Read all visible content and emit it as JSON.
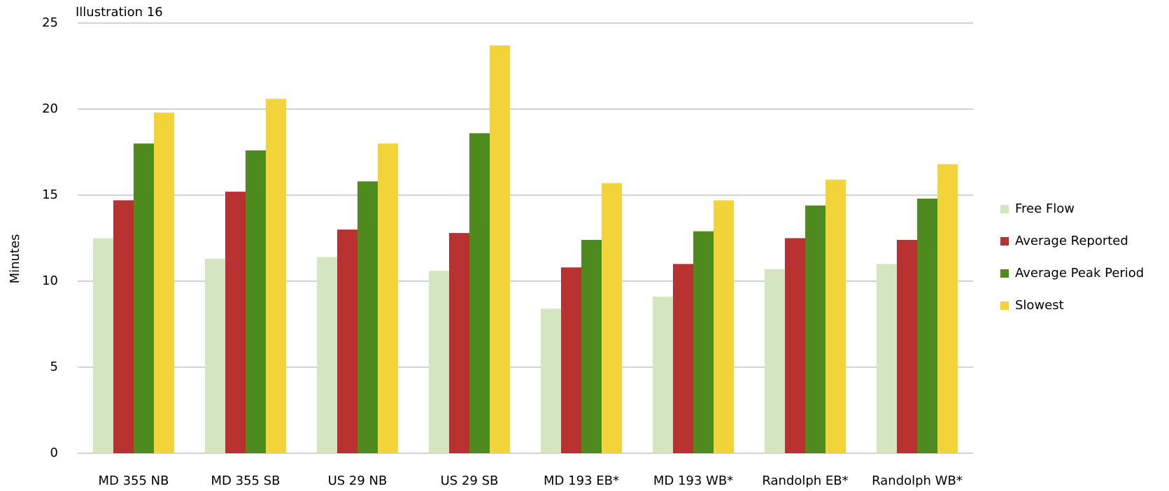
{
  "chart_data": {
    "type": "bar",
    "title": "Illustration 16",
    "y_label": "Minutes",
    "categories": [
      "MD 355 NB",
      "MD 355 SB",
      "US 29 NB",
      "US 29 SB",
      "MD 193 EB*",
      "MD 193 WB*",
      "Randolph EB*",
      "Randolph WB*"
    ],
    "series": [
      {
        "name": "Free Flow",
        "color": "#d5e5bf",
        "values": [
          12.5,
          11.3,
          11.4,
          10.6,
          8.4,
          9.1,
          10.7,
          11.0
        ]
      },
      {
        "name": "Average Reported",
        "color": "#b83232",
        "values": [
          14.7,
          15.2,
          13.0,
          12.8,
          10.8,
          11.0,
          12.5,
          12.4
        ]
      },
      {
        "name": "Average Peak Period",
        "color": "#4e8a1e",
        "values": [
          18.0,
          17.6,
          15.8,
          18.6,
          12.4,
          12.9,
          14.4,
          14.8
        ]
      },
      {
        "name": "Slowest",
        "color": "#f2d43a",
        "values": [
          19.8,
          20.6,
          18.0,
          23.7,
          15.7,
          14.7,
          15.9,
          16.8
        ]
      }
    ],
    "ylim": [
      0,
      25
    ],
    "yticks": [
      0,
      5,
      10,
      15,
      20,
      25
    ],
    "grid": true,
    "legend": "right"
  }
}
